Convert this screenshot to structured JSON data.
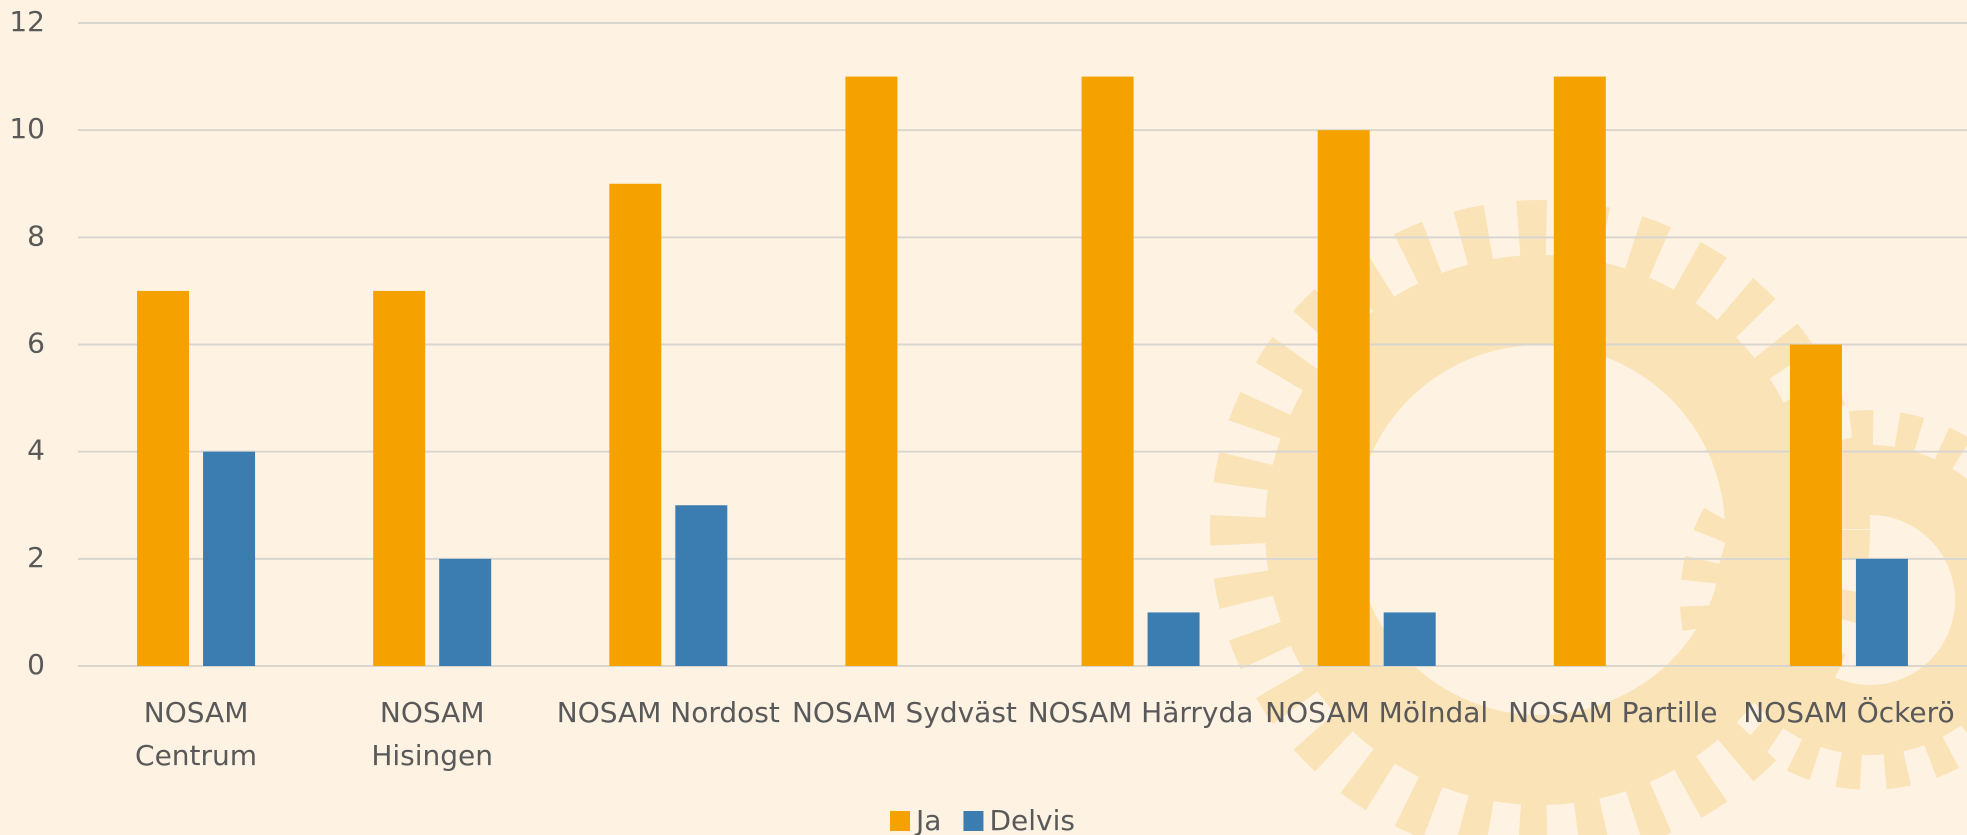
{
  "chart_data": {
    "type": "bar",
    "categories": [
      "NOSAM Centrum",
      "NOSAM Hisingen",
      "NOSAM Nordost",
      "NOSAM Sydväst",
      "NOSAM Härryda",
      "NOSAM Mölndal",
      "NOSAM Partille",
      "NOSAM Öckerö"
    ],
    "series": [
      {
        "name": "Ja",
        "color": "#f5a200",
        "values": [
          7,
          7,
          9,
          11,
          11,
          10,
          11,
          6
        ]
      },
      {
        "name": "Delvis",
        "color": "#3b7cb1",
        "values": [
          4,
          2,
          3,
          null,
          1,
          1,
          null,
          2
        ]
      }
    ],
    "ylim": [
      0,
      12
    ],
    "yticks": [
      0,
      2,
      4,
      6,
      8,
      10,
      12
    ],
    "grid": true,
    "legend": "bottom"
  }
}
